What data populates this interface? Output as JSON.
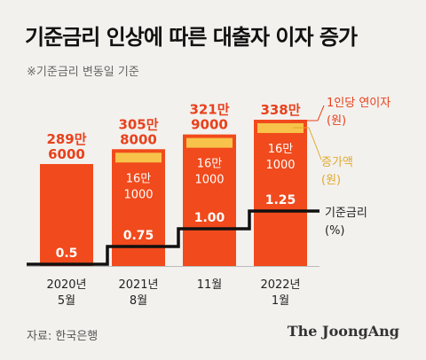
{
  "title": "기준금리 인상에 따른 대출자 이자 증가",
  "note": "※기준금리 변동일 기준",
  "source": "자료: 한국은행",
  "brand": "The JoongAng",
  "colors": {
    "bar": "#f14a1c",
    "increase": "#f7c34a",
    "line": "#111111",
    "annotation_red": "#e8411c",
    "annotation_yellow": "#e0a92c",
    "background": "#f3f1ee"
  },
  "chart_data": {
    "type": "bar",
    "categories": [
      "2020년\n5월",
      "2021년\n8월",
      "11월",
      "2022년\n1월"
    ],
    "bar_labels": [
      "289만\n6000",
      "305만\n8000",
      "321만\n9000",
      "338만"
    ],
    "increase_labels": [
      "",
      "16만\n1000",
      "16만\n1000",
      "16만\n1000"
    ],
    "rate_labels": [
      "0.5",
      "0.75",
      "1.00",
      "1.25"
    ],
    "series": [
      {
        "name": "1인당 연이자 (원)",
        "values": [
          2896000,
          3058000,
          3219000,
          3380000
        ]
      },
      {
        "name": "증가액 (원)",
        "values": [
          0,
          161000,
          161000,
          161000
        ]
      },
      {
        "name": "기준금리 (%)",
        "values": [
          0.5,
          0.75,
          1.0,
          1.25
        ]
      }
    ],
    "legend": {
      "annual_interest": "1인당 연이자\n(원)",
      "increase": "증가액\n(원)",
      "rate": "기준금리\n(%)"
    }
  }
}
